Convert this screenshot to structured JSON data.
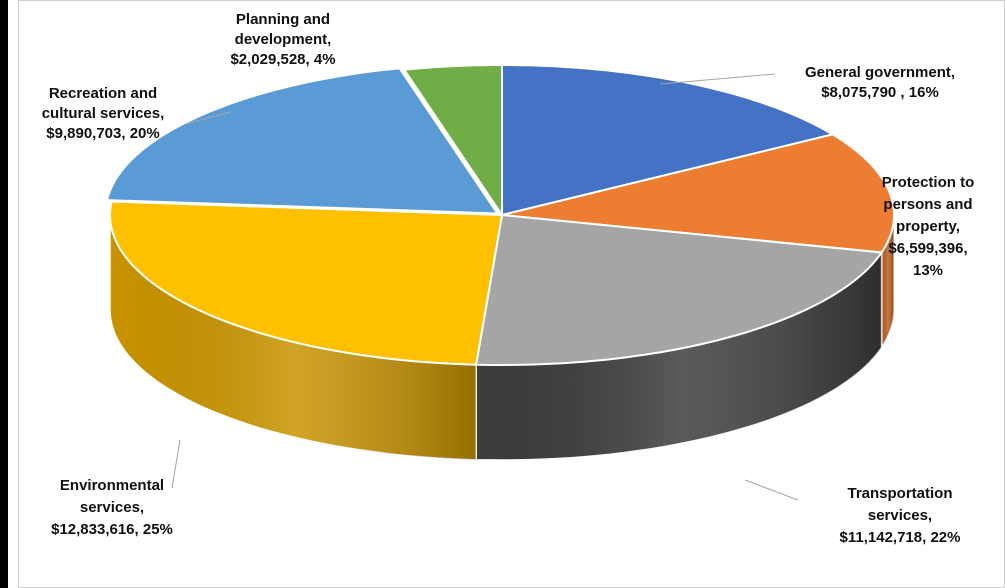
{
  "chart_data": {
    "type": "pie",
    "variant": "3d",
    "title": "",
    "legend": "none",
    "slices": [
      {
        "name": "General government",
        "value": 8075790,
        "percent": 16,
        "color": "#4472C4",
        "side": "#2f5597",
        "label": [
          "General government,",
          "$8,075,790 , 16%"
        ]
      },
      {
        "name": "Protection to persons and property",
        "value": 6599396,
        "percent": 13,
        "color": "#ED7D31",
        "side": "#b85f22",
        "label": [
          "Protection to",
          "persons and",
          "property,",
          "$6,599,396,",
          "13%"
        ]
      },
      {
        "name": "Transportation services",
        "value": 11142718,
        "percent": 22,
        "color": "#A5A5A5",
        "side": "#3d3d3d",
        "label": [
          "Transportation",
          "services,",
          "$11,142,718, 22%"
        ]
      },
      {
        "name": "Environmental services",
        "value": 12833616,
        "percent": 25,
        "color": "#FFC000",
        "side": "#c89300",
        "label": [
          "Environmental",
          "services,",
          "$12,833,616, 25%"
        ]
      },
      {
        "name": "Recreation and cultural services",
        "value": 9890703,
        "percent": 20,
        "color": "#5B9BD5",
        "side": "#3f75a8",
        "label": [
          "Recreation and",
          "cultural services,",
          "$9,890,703, 20%"
        ]
      },
      {
        "name": "Planning and development",
        "value": 2029528,
        "percent": 4,
        "color": "#70AD47",
        "side": "#4e7d31",
        "label": [
          "Planning and",
          "development,",
          "$2,029,528, 4%"
        ]
      }
    ]
  }
}
